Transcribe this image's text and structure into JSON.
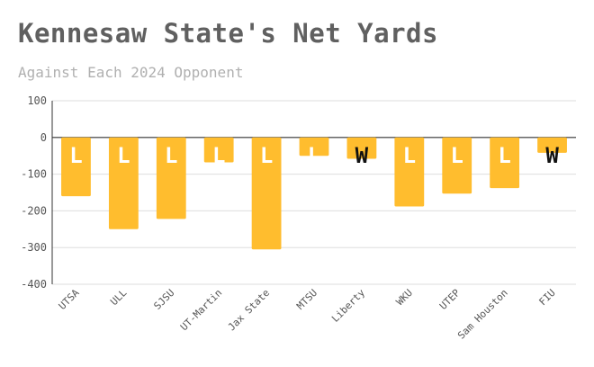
{
  "title": "Kennesaw State's Net Yards",
  "subtitle": "Against Each 2024 Opponent",
  "colors": {
    "bar": "#FFBD2E",
    "win_label": "#111111",
    "loss_label": "#ffffff",
    "grid": "#dddddd",
    "zero_line": "#333333"
  },
  "chart_data": {
    "type": "bar",
    "title": "Kennesaw State's Net Yards",
    "subtitle": "Against Each 2024 Opponent",
    "xlabel": "",
    "ylabel": "",
    "categories": [
      "UTSA",
      "ULL",
      "SJSU",
      "UT-Martin",
      "Jax State",
      "MTSU",
      "Liberty",
      "WKU",
      "UTEP",
      "Sam Houston",
      "FIU"
    ],
    "values": [
      -160,
      -250,
      -222,
      -68,
      -305,
      -50,
      -58,
      -188,
      -153,
      -138,
      -42
    ],
    "results": [
      "L",
      "L",
      "L",
      "L",
      "L",
      "L",
      "W",
      "L",
      "L",
      "L",
      "W"
    ],
    "ylim": [
      -400,
      100
    ],
    "yticks": [
      100,
      0,
      -100,
      -200,
      -300,
      -400
    ],
    "grid": true,
    "legend": "none"
  }
}
